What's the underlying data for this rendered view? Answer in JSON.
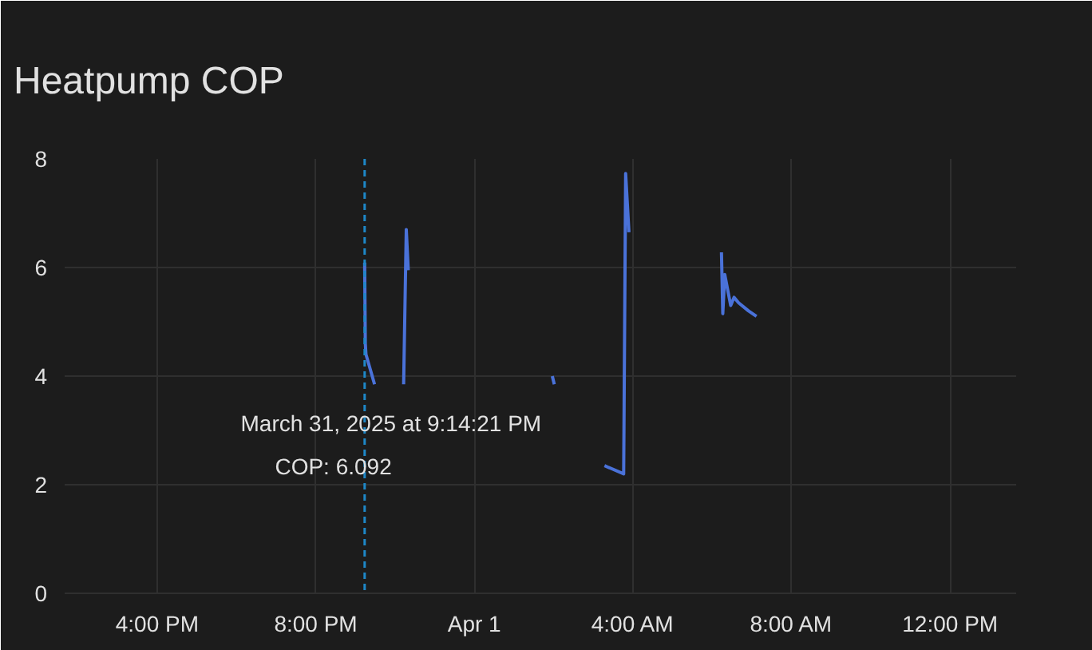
{
  "chart_data": {
    "type": "line",
    "title": "Heatpump COP",
    "x": [
      "2025-03-31T21:14",
      "2025-03-31T21:15",
      "2025-03-31T21:16",
      "2025-03-31T21:29",
      null,
      "2025-03-31T22:13",
      "2025-03-31T22:17",
      "2025-03-31T22:20",
      null,
      "2025-04-01T01:58",
      "2025-04-01T02:01",
      null,
      "2025-04-01T03:17",
      "2025-04-01T03:46",
      "2025-04-01T03:49",
      "2025-04-01T03:54",
      null,
      "2025-04-01T06:14",
      "2025-04-01T06:16",
      "2025-04-01T06:19",
      "2025-04-01T06:28",
      "2025-04-01T06:33",
      "2025-04-01T06:40",
      "2025-04-01T06:55",
      "2025-04-01T07:07"
    ],
    "series": [
      {
        "color": "#4a72d9",
        "values": [
          6.09,
          4.6,
          4.4,
          3.85,
          null,
          3.85,
          6.7,
          5.95,
          null,
          4.0,
          3.85,
          null,
          2.35,
          2.2,
          7.73,
          6.65,
          null,
          6.28,
          5.15,
          5.87,
          5.3,
          5.45,
          5.35,
          5.2,
          5.1
        ]
      }
    ],
    "xlim": [
      "2025-03-31T13:40",
      "2025-04-01T13:40"
    ],
    "xticks": [
      {
        "value": "2025-03-31T16:00",
        "label": "4:00 PM"
      },
      {
        "value": "2025-03-31T20:00",
        "label": "8:00 PM"
      },
      {
        "value": "2025-04-01T00:00",
        "label": "Apr 1"
      },
      {
        "value": "2025-04-01T04:00",
        "label": "4:00 AM"
      },
      {
        "value": "2025-04-01T08:00",
        "label": "8:00 AM"
      },
      {
        "value": "2025-04-01T12:00",
        "label": "12:00 PM"
      }
    ],
    "ylim": [
      0,
      8
    ],
    "yticks": [
      0,
      2,
      4,
      6,
      8
    ],
    "grid": true,
    "marker": "none",
    "line_style": "solid",
    "ref_lines": [
      {
        "axis": "x",
        "value": "2025-03-31T21:14",
        "color": "#1e88c8",
        "line_style": "dashed"
      }
    ],
    "annotations": [
      "March 31, 2025 at 9:14:21 PM",
      "COP: 6.092"
    ]
  }
}
